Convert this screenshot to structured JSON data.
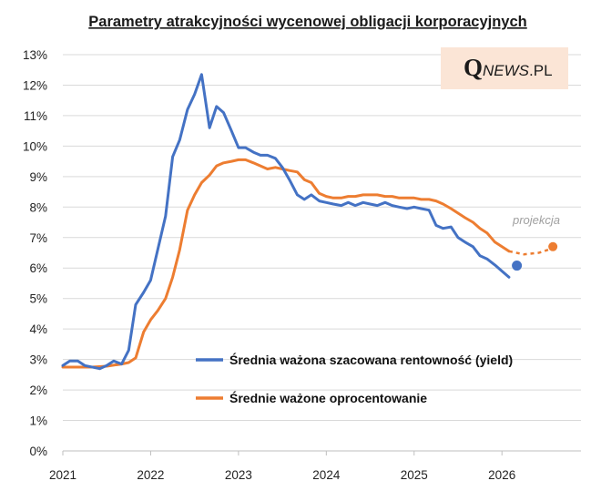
{
  "colors": {
    "yield": "#4472C4",
    "coupon": "#ED7D31",
    "grid": "#d9d9d9",
    "logo_bg": "#fbe5d6"
  },
  "logo": {
    "q": "Q",
    "news": "NEWS",
    "pl": ".PL"
  },
  "chart_data": {
    "type": "line",
    "title": "Parametry atrakcyjności wycenowej obligacji korporacyjnych",
    "xlabel": "",
    "ylabel": "",
    "xlim": [
      2021.0,
      2026.9
    ],
    "ylim": [
      0,
      13
    ],
    "x_ticks": [
      {
        "v": 2021,
        "label": "2021"
      },
      {
        "v": 2022,
        "label": "2022"
      },
      {
        "v": 2023,
        "label": "2023"
      },
      {
        "v": 2024,
        "label": "2024"
      },
      {
        "v": 2025,
        "label": "2025"
      },
      {
        "v": 2026,
        "label": "2026"
      }
    ],
    "y_ticks": [
      {
        "v": 0,
        "label": "0%"
      },
      {
        "v": 1,
        "label": "1%"
      },
      {
        "v": 2,
        "label": "2%"
      },
      {
        "v": 3,
        "label": "3%"
      },
      {
        "v": 4,
        "label": "4%"
      },
      {
        "v": 5,
        "label": "5%"
      },
      {
        "v": 6,
        "label": "6%"
      },
      {
        "v": 7,
        "label": "7%"
      },
      {
        "v": 8,
        "label": "8%"
      },
      {
        "v": 9,
        "label": "9%"
      },
      {
        "v": 10,
        "label": "10%"
      },
      {
        "v": 11,
        "label": "11%"
      },
      {
        "v": 12,
        "label": "12%"
      },
      {
        "v": 13,
        "label": "13%"
      }
    ],
    "grid": true,
    "legend_position": "bottom-right",
    "annotation": "projekcja",
    "series": [
      {
        "name": "Średnia ważona szacowana rentowność (yield)",
        "color": "#4472C4",
        "points": [
          [
            2021.0,
            2.8
          ],
          [
            2021.08,
            2.95
          ],
          [
            2021.17,
            2.95
          ],
          [
            2021.25,
            2.8
          ],
          [
            2021.42,
            2.7
          ],
          [
            2021.5,
            2.8
          ],
          [
            2021.58,
            2.95
          ],
          [
            2021.67,
            2.85
          ],
          [
            2021.75,
            3.3
          ],
          [
            2021.83,
            4.8
          ],
          [
            2021.92,
            5.2
          ],
          [
            2022.0,
            5.6
          ],
          [
            2022.08,
            6.6
          ],
          [
            2022.17,
            7.7
          ],
          [
            2022.25,
            9.65
          ],
          [
            2022.33,
            10.2
          ],
          [
            2022.42,
            11.2
          ],
          [
            2022.5,
            11.7
          ],
          [
            2022.58,
            12.35
          ],
          [
            2022.67,
            10.6
          ],
          [
            2022.75,
            11.3
          ],
          [
            2022.83,
            11.1
          ],
          [
            2022.92,
            10.5
          ],
          [
            2023.0,
            9.95
          ],
          [
            2023.08,
            9.95
          ],
          [
            2023.17,
            9.8
          ],
          [
            2023.25,
            9.7
          ],
          [
            2023.33,
            9.7
          ],
          [
            2023.42,
            9.6
          ],
          [
            2023.5,
            9.3
          ],
          [
            2023.58,
            8.9
          ],
          [
            2023.67,
            8.4
          ],
          [
            2023.75,
            8.25
          ],
          [
            2023.83,
            8.4
          ],
          [
            2023.92,
            8.2
          ],
          [
            2024.0,
            8.15
          ],
          [
            2024.08,
            8.1
          ],
          [
            2024.17,
            8.05
          ],
          [
            2024.25,
            8.15
          ],
          [
            2024.33,
            8.05
          ],
          [
            2024.42,
            8.15
          ],
          [
            2024.5,
            8.1
          ],
          [
            2024.58,
            8.05
          ],
          [
            2024.67,
            8.15
          ],
          [
            2024.75,
            8.05
          ],
          [
            2024.83,
            8.0
          ],
          [
            2024.92,
            7.95
          ],
          [
            2025.0,
            8.0
          ],
          [
            2025.08,
            7.95
          ],
          [
            2025.17,
            7.9
          ],
          [
            2025.25,
            7.4
          ],
          [
            2025.33,
            7.3
          ],
          [
            2025.42,
            7.35
          ],
          [
            2025.5,
            7.0
          ],
          [
            2025.58,
            6.85
          ],
          [
            2025.67,
            6.7
          ],
          [
            2025.75,
            6.4
          ],
          [
            2025.83,
            6.3
          ],
          [
            2025.92,
            6.1
          ],
          [
            2026.0,
            5.9
          ],
          [
            2026.08,
            5.7
          ]
        ],
        "marker": [
          2026.17,
          6.08
        ]
      },
      {
        "name": "Średnie ważone oprocentowanie",
        "color": "#ED7D31",
        "points": [
          [
            2021.0,
            2.75
          ],
          [
            2021.17,
            2.75
          ],
          [
            2021.33,
            2.75
          ],
          [
            2021.5,
            2.78
          ],
          [
            2021.67,
            2.85
          ],
          [
            2021.75,
            2.9
          ],
          [
            2021.83,
            3.05
          ],
          [
            2021.92,
            3.9
          ],
          [
            2022.0,
            4.3
          ],
          [
            2022.08,
            4.6
          ],
          [
            2022.17,
            5.0
          ],
          [
            2022.25,
            5.7
          ],
          [
            2022.33,
            6.6
          ],
          [
            2022.42,
            7.9
          ],
          [
            2022.5,
            8.4
          ],
          [
            2022.58,
            8.8
          ],
          [
            2022.67,
            9.05
          ],
          [
            2022.75,
            9.35
          ],
          [
            2022.83,
            9.45
          ],
          [
            2022.92,
            9.5
          ],
          [
            2023.0,
            9.55
          ],
          [
            2023.08,
            9.55
          ],
          [
            2023.17,
            9.45
          ],
          [
            2023.25,
            9.35
          ],
          [
            2023.33,
            9.25
          ],
          [
            2023.42,
            9.3
          ],
          [
            2023.5,
            9.25
          ],
          [
            2023.58,
            9.2
          ],
          [
            2023.67,
            9.15
          ],
          [
            2023.75,
            8.9
          ],
          [
            2023.83,
            8.8
          ],
          [
            2023.92,
            8.45
          ],
          [
            2024.0,
            8.35
          ],
          [
            2024.08,
            8.3
          ],
          [
            2024.17,
            8.3
          ],
          [
            2024.25,
            8.35
          ],
          [
            2024.33,
            8.35
          ],
          [
            2024.42,
            8.4
          ],
          [
            2024.5,
            8.4
          ],
          [
            2024.58,
            8.4
          ],
          [
            2024.67,
            8.35
          ],
          [
            2024.75,
            8.35
          ],
          [
            2024.83,
            8.3
          ],
          [
            2024.92,
            8.3
          ],
          [
            2025.0,
            8.3
          ],
          [
            2025.08,
            8.25
          ],
          [
            2025.17,
            8.25
          ],
          [
            2025.25,
            8.2
          ],
          [
            2025.33,
            8.1
          ],
          [
            2025.42,
            7.95
          ],
          [
            2025.5,
            7.8
          ],
          [
            2025.58,
            7.65
          ],
          [
            2025.67,
            7.5
          ],
          [
            2025.75,
            7.3
          ],
          [
            2025.83,
            7.15
          ],
          [
            2025.92,
            6.85
          ],
          [
            2026.0,
            6.7
          ],
          [
            2026.08,
            6.55
          ]
        ],
        "projection": [
          [
            2026.08,
            6.55
          ],
          [
            2026.25,
            6.45
          ],
          [
            2026.42,
            6.5
          ],
          [
            2026.58,
            6.65
          ]
        ],
        "marker": [
          2026.58,
          6.7
        ]
      }
    ]
  }
}
